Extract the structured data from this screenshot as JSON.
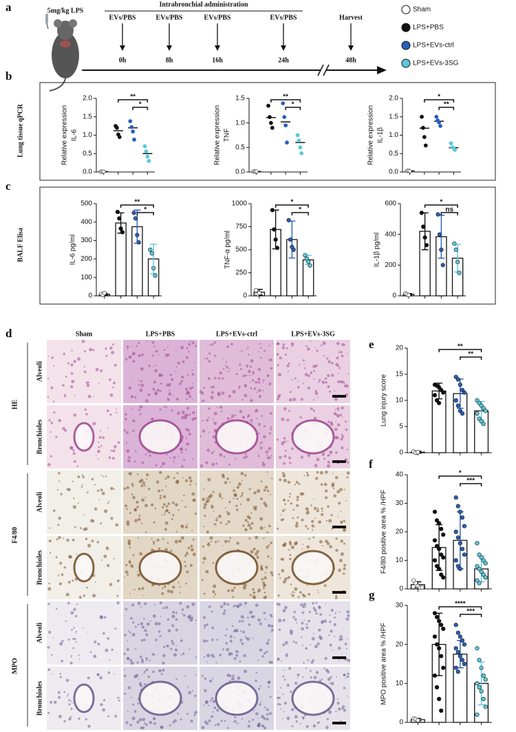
{
  "panel_labels": [
    "a",
    "b",
    "c",
    "d",
    "e",
    "f",
    "g"
  ],
  "timeline": {
    "dose": "5mg/kg LPS",
    "administration": "Intrabronchial administration",
    "doses": [
      {
        "label": "EVs/PBS",
        "time": "0h"
      },
      {
        "label": "EVs/PBS",
        "time": "8h"
      },
      {
        "label": "EVs/PBS",
        "time": "16h"
      },
      {
        "label": "EVs/PBS",
        "time": "24h"
      }
    ],
    "harvest": {
      "label": "Harvest",
      "time": "48h"
    }
  },
  "legend": {
    "items": [
      {
        "name": "Sham",
        "color": "#ffffff"
      },
      {
        "name": "LPS+PBS",
        "color": "#111111"
      },
      {
        "name": "LPS+EVs-ctrl",
        "color": "#2b5fb8"
      },
      {
        "name": "LPS+EVs-3SG",
        "color": "#5bc8dc"
      }
    ]
  },
  "sections": [
    "Lung tissue qPCR",
    "BALF Elisa"
  ],
  "histology": {
    "columns": [
      "Sham",
      "LPS+PBS",
      "LPS+EVs-ctrl",
      "LPS+EVs-3SG"
    ],
    "stains": [
      {
        "name": "HE",
        "rows": [
          "Alveoli",
          "Bronchioles"
        ]
      },
      {
        "name": "F4/80",
        "rows": [
          "Alveoli",
          "Bronchioles"
        ]
      },
      {
        "name": "MPO",
        "rows": [
          "Alveoli",
          "Bronchioles"
        ]
      }
    ]
  },
  "chart_data": [
    {
      "type": "dot",
      "ylabel": [
        "Relative expression",
        "IL-6"
      ],
      "ylim": [
        0,
        2
      ],
      "yticks": [
        {
          "value": 0,
          "label": "0.0"
        },
        0.5,
        {
          "value": 1,
          "label": "1.0"
        },
        1.5,
        {
          "value": 2,
          "label": "2.0"
        }
      ],
      "groups": [
        {
          "values": [
            0.01,
            0.01,
            0.01
          ],
          "mean": 0.01
        },
        {
          "values": [
            1.25,
            1.2,
            1.02,
            0.95
          ],
          "mean": 1.12
        },
        {
          "values": [
            1.38,
            1.22,
            1.1,
            0.88
          ],
          "mean": 1.2
        },
        {
          "values": [
            0.7,
            0.56,
            0.42,
            0.3
          ],
          "mean": 0.5
        }
      ],
      "annotations": [
        {
          "from": 1,
          "to": 3,
          "label": "**"
        },
        {
          "from": 2,
          "to": 3,
          "label": "*"
        }
      ]
    },
    {
      "type": "dot",
      "ylabel": [
        "Relative expression",
        "TNF"
      ],
      "ylim": [
        0,
        1.5
      ],
      "yticks": [
        {
          "value": 0,
          "label": "0.0"
        },
        0.5,
        {
          "value": 1,
          "label": "1.0"
        },
        1.5
      ],
      "groups": [
        {
          "values": [
            0.01,
            0.01,
            0.01
          ],
          "mean": 0.01
        },
        {
          "values": [
            1.35,
            1.12,
            1.0,
            0.9
          ],
          "mean": 1.11
        },
        {
          "values": [
            1.4,
            1.12,
            0.95,
            0.6
          ],
          "mean": 1.02
        },
        {
          "values": [
            0.75,
            0.64,
            0.5,
            0.38
          ],
          "mean": 0.6
        }
      ],
      "annotations": [
        {
          "from": 1,
          "to": 3,
          "label": "**"
        },
        {
          "from": 2,
          "to": 3,
          "label": "*"
        }
      ]
    },
    {
      "type": "dot",
      "ylabel": [
        "Relative expression",
        "IL-1β"
      ],
      "ylim": [
        0,
        2
      ],
      "yticks": [
        {
          "value": 0,
          "label": "0.0"
        },
        0.5,
        {
          "value": 1,
          "label": "1.0"
        },
        1.5,
        {
          "value": 2,
          "label": "2.0"
        }
      ],
      "groups": [
        {
          "values": [
            0.03,
            0.04,
            0.02
          ],
          "mean": 0.03
        },
        {
          "values": [
            1.5,
            1.2,
            0.95,
            0.72
          ],
          "mean": 1.19
        },
        {
          "values": [
            1.5,
            1.4,
            1.35,
            1.25
          ],
          "mean": 1.38
        },
        {
          "values": [
            0.78,
            0.67,
            0.65,
            0.6
          ],
          "mean": 0.66
        }
      ],
      "annotations": [
        {
          "from": 1,
          "to": 3,
          "label": "*"
        },
        {
          "from": 2,
          "to": 3,
          "label": "**"
        }
      ]
    },
    {
      "type": "bar",
      "ylabel": [
        "IL-6 pg/ml"
      ],
      "ylim": [
        0,
        500
      ],
      "yticks": [
        0,
        100,
        200,
        300,
        400,
        500
      ],
      "groups": [
        {
          "values": [
            10,
            5,
            15
          ],
          "mean": 8,
          "err": 5
        },
        {
          "values": [
            455,
            420,
            365,
            345
          ],
          "mean": 395,
          "err": 55
        },
        {
          "values": [
            450,
            420,
            330,
            290
          ],
          "mean": 375,
          "err": 90
        },
        {
          "values": [
            250,
            230,
            150,
            110
          ],
          "mean": 200,
          "err": 80
        }
      ],
      "annotations": [
        {
          "from": 1,
          "to": 3,
          "label": "**"
        },
        {
          "from": 2,
          "to": 3,
          "label": "*"
        }
      ]
    },
    {
      "type": "bar",
      "ylabel": [
        "TNF-α pg/ml"
      ],
      "ylim": [
        0,
        1000
      ],
      "yticks": [
        0,
        250,
        500,
        750,
        1000
      ],
      "groups": [
        {
          "values": [
            60,
            20,
            30
          ],
          "mean": 40,
          "err": 30
        },
        {
          "values": [
            930,
            720,
            610,
            520
          ],
          "mean": 720,
          "err": 210
        },
        {
          "values": [
            820,
            610,
            530,
            500
          ],
          "mean": 610,
          "err": 200
        },
        {
          "values": [
            440,
            400,
            370,
            330
          ],
          "mean": 390,
          "err": 50
        }
      ],
      "annotations": [
        {
          "from": 1,
          "to": 3,
          "label": "*"
        },
        {
          "from": 2,
          "to": 3,
          "label": "*"
        }
      ]
    },
    {
      "type": "bar",
      "ylabel": [
        "IL-1β pg/ml"
      ],
      "ylim": [
        0,
        600
      ],
      "yticks": [
        0,
        200,
        400,
        600
      ],
      "groups": [
        {
          "values": [
            15,
            10,
            5
          ],
          "mean": 10,
          "err": 5
        },
        {
          "values": [
            540,
            450,
            380,
            330
          ],
          "mean": 420,
          "err": 120
        },
        {
          "values": [
            530,
            400,
            300,
            200
          ],
          "mean": 385,
          "err": 140
        },
        {
          "values": [
            340,
            300,
            220,
            150
          ],
          "mean": 245,
          "err": 90
        }
      ],
      "annotations": [
        {
          "from": 1,
          "to": 3,
          "label": "*"
        },
        {
          "from": 2,
          "to": 3,
          "label": "ns"
        }
      ]
    },
    {
      "type": "bar",
      "ylabel": [
        "Lung injury score"
      ],
      "ylim": [
        0,
        20
      ],
      "yticks": [
        0,
        5,
        10,
        15,
        20
      ],
      "groups": [
        {
          "values": [
            0.2,
            0,
            0.1
          ],
          "mean": 0.1,
          "err": 0.2
        },
        {
          "values": [
            13,
            12.8,
            12.5,
            12,
            11.5,
            11,
            10,
            9.5
          ],
          "mean": 11.8,
          "err": 1.5
        },
        {
          "values": [
            14.5,
            14,
            13,
            12,
            11.5,
            10,
            9,
            8,
            7.5
          ],
          "mean": 11.3,
          "err": 2.8
        },
        {
          "values": [
            10,
            9.5,
            9,
            8.5,
            8,
            7.5,
            6.5,
            6,
            5.5
          ],
          "mean": 8,
          "err": 1.8
        }
      ],
      "annotations": [
        {
          "from": 1,
          "to": 3,
          "label": "**"
        },
        {
          "from": 2,
          "to": 3,
          "label": "**"
        }
      ]
    },
    {
      "type": "bar",
      "ylabel": [
        "F4/80 positive area % /HPF"
      ],
      "ylim": [
        0,
        40
      ],
      "yticks": [
        0,
        10,
        20,
        30,
        40
      ],
      "groups": [
        {
          "values": [
            3,
            2,
            1,
            0.5,
            0.5
          ],
          "mean": 1.5,
          "err": 1
        },
        {
          "values": [
            27,
            24,
            23,
            21,
            19,
            17,
            15,
            14,
            12,
            11,
            10,
            8,
            7,
            5,
            4
          ],
          "mean": 14.5,
          "err": 8
        },
        {
          "values": [
            32,
            29,
            27,
            25,
            22,
            20,
            18,
            16,
            14,
            12,
            10,
            8,
            7
          ],
          "mean": 17,
          "err": 10
        },
        {
          "values": [
            16,
            12,
            11,
            10,
            9,
            8,
            7,
            6,
            5,
            4,
            3,
            2
          ],
          "mean": 7,
          "err": 4.5
        }
      ],
      "annotations": [
        {
          "from": 1,
          "to": 3,
          "label": "*"
        },
        {
          "from": 2,
          "to": 3,
          "label": "***"
        }
      ]
    },
    {
      "type": "bar",
      "ylabel": [
        "MPO positive area % /HPF"
      ],
      "ylim": [
        0,
        30
      ],
      "yticks": [
        0,
        10,
        20,
        30
      ],
      "groups": [
        {
          "values": [
            1,
            0.8,
            0.5
          ],
          "mean": 0.7,
          "err": 0.3
        },
        {
          "values": [
            28,
            27,
            26,
            25,
            24,
            22,
            20,
            19,
            17,
            14,
            12,
            9,
            6,
            3
          ],
          "mean": 20,
          "err": 8
        },
        {
          "values": [
            25,
            23,
            22,
            21,
            20,
            19,
            18,
            17,
            16,
            15,
            14,
            13
          ],
          "mean": 17.5,
          "err": 3.5
        },
        {
          "values": [
            19,
            16,
            14,
            12,
            11,
            10,
            9,
            8,
            6,
            4,
            2
          ],
          "mean": 10,
          "err": 5.5
        }
      ],
      "annotations": [
        {
          "from": 1,
          "to": 3,
          "label": "****"
        },
        {
          "from": 2,
          "to": 3,
          "label": "***"
        }
      ]
    }
  ]
}
